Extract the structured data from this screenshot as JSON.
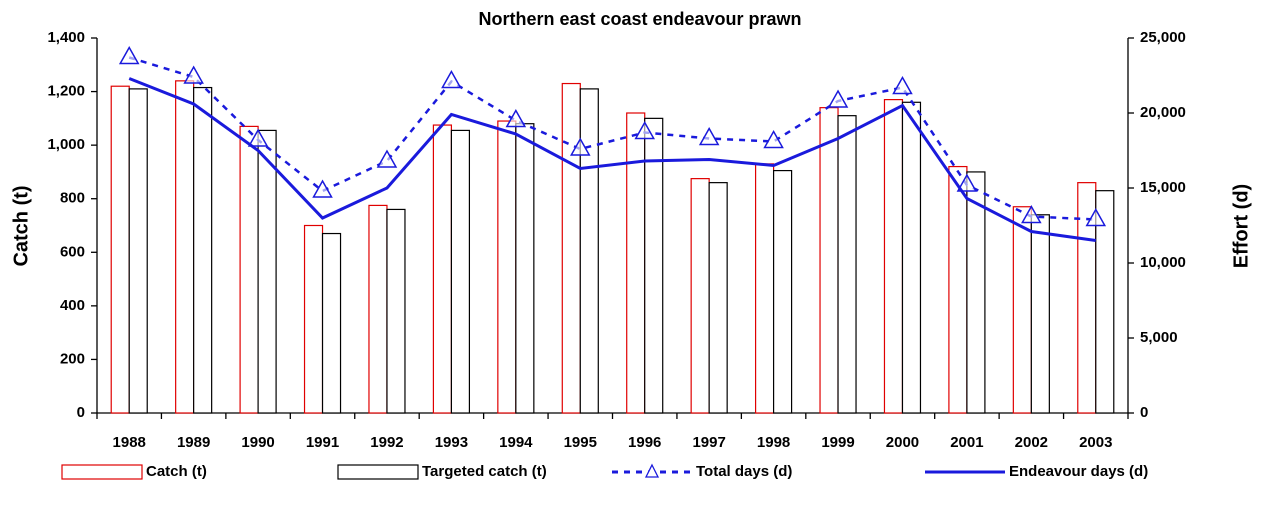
{
  "chart_data": {
    "type": "bar-line",
    "title": "Northern east coast endeavour prawn",
    "y_label": "Catch (t)",
    "y2_label": "Effort (d)",
    "categories": [
      "1988",
      "1989",
      "1990",
      "1991",
      "1992",
      "1993",
      "1994",
      "1995",
      "1996",
      "1997",
      "1998",
      "1999",
      "2000",
      "2001",
      "2002",
      "2003"
    ],
    "ylim": [
      0,
      1400
    ],
    "yticks": [
      0,
      200,
      400,
      600,
      800,
      {
        "value": 1000,
        "label": "1,000"
      },
      {
        "value": 1200,
        "label": "1,200"
      },
      {
        "value": 1400,
        "label": "1,400"
      }
    ],
    "y2lim": [
      0,
      25000
    ],
    "y2ticks": [
      0,
      {
        "value": 5000,
        "label": "5,000"
      },
      {
        "value": 10000,
        "label": "10,000"
      },
      {
        "value": 15000,
        "label": "15,000"
      },
      {
        "value": 20000,
        "label": "20,000"
      },
      {
        "value": 25000,
        "label": "25,000"
      }
    ],
    "series": [
      {
        "name": "Catch (t)",
        "type": "bar",
        "color": "#e00000",
        "values": [
          1220,
          1240,
          1070,
          700,
          775,
          1075,
          1090,
          1230,
          1120,
          875,
          930,
          1140,
          1170,
          920,
          770,
          860
        ]
      },
      {
        "name": "Targeted catch (t)",
        "type": "bar",
        "color": "#000000",
        "values": [
          1210,
          1215,
          1055,
          670,
          760,
          1055,
          1080,
          1210,
          1100,
          860,
          905,
          1110,
          1160,
          900,
          740,
          830
        ]
      },
      {
        "name": "Total days (d)",
        "type": "line",
        "axis": "y2",
        "color": "#1a1adc",
        "dashed": true,
        "marker": "triangle",
        "values": [
          23700,
          22400,
          18200,
          14800,
          16800,
          22100,
          19500,
          17600,
          18700,
          18300,
          18100,
          20800,
          21700,
          15200,
          13100,
          12900
        ]
      },
      {
        "name": "Endeavour days (d)",
        "type": "line",
        "axis": "y2",
        "color": "#1a1adc",
        "dashed": false,
        "values": [
          22300,
          20600,
          17500,
          13000,
          15000,
          19900,
          18600,
          16300,
          16800,
          16900,
          16500,
          18300,
          20500,
          14300,
          12100,
          11500
        ]
      }
    ]
  }
}
